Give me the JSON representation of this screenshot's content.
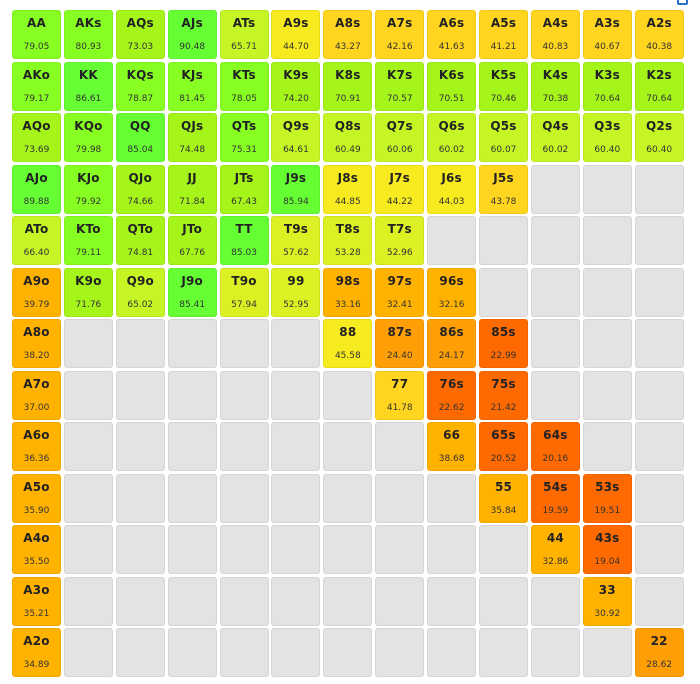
{
  "colors": {
    "empty": "#e3e3e3",
    "palette": [
      {
        "min": 85,
        "hex": "#66ff33"
      },
      {
        "min": 75,
        "hex": "#88ff22"
      },
      {
        "min": 67,
        "hex": "#a6f51a"
      },
      {
        "min": 60,
        "hex": "#c6f526"
      },
      {
        "min": 50,
        "hex": "#ddf024"
      },
      {
        "min": 44,
        "hex": "#f7eb1f"
      },
      {
        "min": 40,
        "hex": "#ffd51f"
      },
      {
        "min": 30,
        "hex": "#ffb300"
      },
      {
        "min": 24,
        "hex": "#ff9f05"
      },
      {
        "min": 0,
        "hex": "#ff6a00"
      }
    ]
  },
  "grid": [
    [
      {
        "hand": "AA",
        "value": "79.05"
      },
      {
        "hand": "AKs",
        "value": "80.93"
      },
      {
        "hand": "AQs",
        "value": "73.03"
      },
      {
        "hand": "AJs",
        "value": "90.48"
      },
      {
        "hand": "ATs",
        "value": "65.71"
      },
      {
        "hand": "A9s",
        "value": "44.70"
      },
      {
        "hand": "A8s",
        "value": "43.27"
      },
      {
        "hand": "A7s",
        "value": "42.16"
      },
      {
        "hand": "A6s",
        "value": "41.63"
      },
      {
        "hand": "A5s",
        "value": "41.21"
      },
      {
        "hand": "A4s",
        "value": "40.83"
      },
      {
        "hand": "A3s",
        "value": "40.67"
      },
      {
        "hand": "A2s",
        "value": "40.38"
      }
    ],
    [
      {
        "hand": "AKo",
        "value": "79.17"
      },
      {
        "hand": "KK",
        "value": "86.61"
      },
      {
        "hand": "KQs",
        "value": "78.87"
      },
      {
        "hand": "KJs",
        "value": "81.45"
      },
      {
        "hand": "KTs",
        "value": "78.05"
      },
      {
        "hand": "K9s",
        "value": "74.20"
      },
      {
        "hand": "K8s",
        "value": "70.91"
      },
      {
        "hand": "K7s",
        "value": "70.57"
      },
      {
        "hand": "K6s",
        "value": "70.51"
      },
      {
        "hand": "K5s",
        "value": "70.46"
      },
      {
        "hand": "K4s",
        "value": "70.38"
      },
      {
        "hand": "K3s",
        "value": "70.64"
      },
      {
        "hand": "K2s",
        "value": "70.64"
      }
    ],
    [
      {
        "hand": "AQo",
        "value": "73.69"
      },
      {
        "hand": "KQo",
        "value": "79.98"
      },
      {
        "hand": "QQ",
        "value": "85.04"
      },
      {
        "hand": "QJs",
        "value": "74.48"
      },
      {
        "hand": "QTs",
        "value": "75.31"
      },
      {
        "hand": "Q9s",
        "value": "64.61"
      },
      {
        "hand": "Q8s",
        "value": "60.49"
      },
      {
        "hand": "Q7s",
        "value": "60.06"
      },
      {
        "hand": "Q6s",
        "value": "60.02"
      },
      {
        "hand": "Q5s",
        "value": "60.07"
      },
      {
        "hand": "Q4s",
        "value": "60.02"
      },
      {
        "hand": "Q3s",
        "value": "60.40"
      },
      {
        "hand": "Q2s",
        "value": "60.40"
      }
    ],
    [
      {
        "hand": "AJo",
        "value": "89.88"
      },
      {
        "hand": "KJo",
        "value": "79.92"
      },
      {
        "hand": "QJo",
        "value": "74.66"
      },
      {
        "hand": "JJ",
        "value": "71.84"
      },
      {
        "hand": "JTs",
        "value": "67.43"
      },
      {
        "hand": "J9s",
        "value": "85.94"
      },
      {
        "hand": "J8s",
        "value": "44.85"
      },
      {
        "hand": "J7s",
        "value": "44.22"
      },
      {
        "hand": "J6s",
        "value": "44.03"
      },
      {
        "hand": "J5s",
        "value": "43.78"
      },
      null,
      null,
      null
    ],
    [
      {
        "hand": "ATo",
        "value": "66.40"
      },
      {
        "hand": "KTo",
        "value": "79.11"
      },
      {
        "hand": "QTo",
        "value": "74.81"
      },
      {
        "hand": "JTo",
        "value": "67.76"
      },
      {
        "hand": "TT",
        "value": "85.03"
      },
      {
        "hand": "T9s",
        "value": "57.62"
      },
      {
        "hand": "T8s",
        "value": "53.28"
      },
      {
        "hand": "T7s",
        "value": "52.96"
      },
      null,
      null,
      null,
      null,
      null
    ],
    [
      {
        "hand": "A9o",
        "value": "39.79"
      },
      {
        "hand": "K9o",
        "value": "71.76"
      },
      {
        "hand": "Q9o",
        "value": "65.02"
      },
      {
        "hand": "J9o",
        "value": "85.41"
      },
      {
        "hand": "T9o",
        "value": "57.94"
      },
      {
        "hand": "99",
        "value": "52.95"
      },
      {
        "hand": "98s",
        "value": "33.16"
      },
      {
        "hand": "97s",
        "value": "32.41"
      },
      {
        "hand": "96s",
        "value": "32.16"
      },
      null,
      null,
      null,
      null
    ],
    [
      {
        "hand": "A8o",
        "value": "38.20"
      },
      null,
      null,
      null,
      null,
      null,
      {
        "hand": "88",
        "value": "45.58"
      },
      {
        "hand": "87s",
        "value": "24.40"
      },
      {
        "hand": "86s",
        "value": "24.17"
      },
      {
        "hand": "85s",
        "value": "22.99"
      },
      null,
      null,
      null
    ],
    [
      {
        "hand": "A7o",
        "value": "37.00"
      },
      null,
      null,
      null,
      null,
      null,
      null,
      {
        "hand": "77",
        "value": "41.78"
      },
      {
        "hand": "76s",
        "value": "22.62"
      },
      {
        "hand": "75s",
        "value": "21.42"
      },
      null,
      null,
      null
    ],
    [
      {
        "hand": "A6o",
        "value": "36.36"
      },
      null,
      null,
      null,
      null,
      null,
      null,
      null,
      {
        "hand": "66",
        "value": "38.68"
      },
      {
        "hand": "65s",
        "value": "20.52"
      },
      {
        "hand": "64s",
        "value": "20.16"
      },
      null,
      null
    ],
    [
      {
        "hand": "A5o",
        "value": "35.90"
      },
      null,
      null,
      null,
      null,
      null,
      null,
      null,
      null,
      {
        "hand": "55",
        "value": "35.84"
      },
      {
        "hand": "54s",
        "value": "19.59"
      },
      {
        "hand": "53s",
        "value": "19.51"
      },
      null
    ],
    [
      {
        "hand": "A4o",
        "value": "35.50"
      },
      null,
      null,
      null,
      null,
      null,
      null,
      null,
      null,
      null,
      {
        "hand": "44",
        "value": "32.86"
      },
      {
        "hand": "43s",
        "value": "19.04"
      },
      null
    ],
    [
      {
        "hand": "A3o",
        "value": "35.21"
      },
      null,
      null,
      null,
      null,
      null,
      null,
      null,
      null,
      null,
      null,
      {
        "hand": "33",
        "value": "30.92"
      },
      null
    ],
    [
      {
        "hand": "A2o",
        "value": "34.89"
      },
      null,
      null,
      null,
      null,
      null,
      null,
      null,
      null,
      null,
      null,
      null,
      {
        "hand": "22",
        "value": "28.62"
      }
    ]
  ]
}
